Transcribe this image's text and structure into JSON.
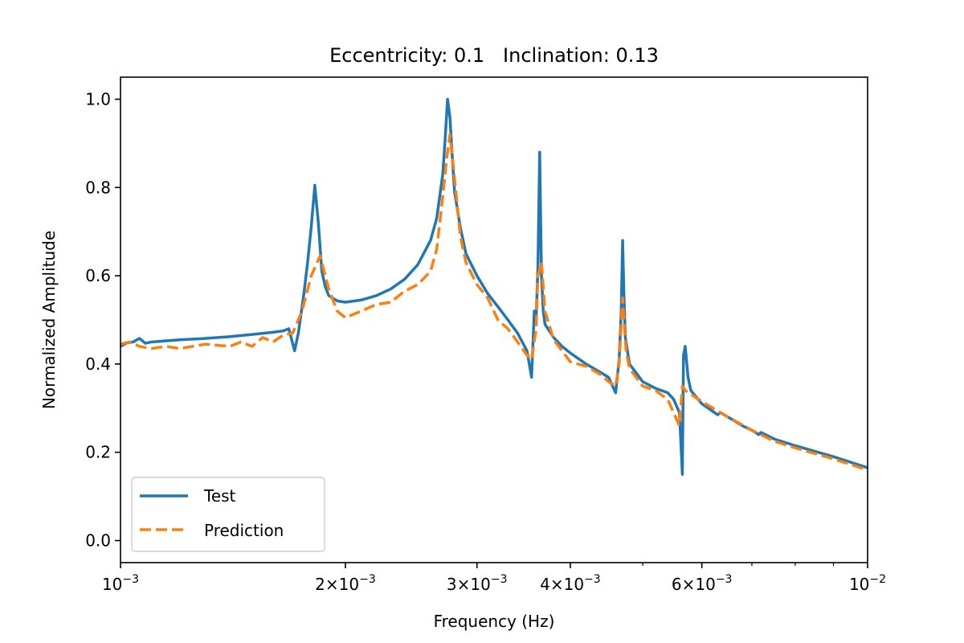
{
  "chart_data": {
    "type": "line",
    "title": "Eccentricity: 0.1   Inclination: 0.13",
    "xlabel": "Frequency (Hz)",
    "ylabel": "Normalized Amplitude",
    "xscale": "log",
    "xlim": [
      0.001,
      0.01
    ],
    "ylim": [
      -0.05,
      1.05
    ],
    "grid": false,
    "legend_position": "lower-left",
    "x_ticks": [
      {
        "value": 0.001,
        "label": "10",
        "sup": "−3",
        "coef": ""
      },
      {
        "value": 0.002,
        "label": "2×10",
        "sup": "−3",
        "coef": "2"
      },
      {
        "value": 0.003,
        "label": "3×10",
        "sup": "−3",
        "coef": "3"
      },
      {
        "value": 0.004,
        "label": "4×10",
        "sup": "−3",
        "coef": "4"
      },
      {
        "value": 0.006,
        "label": "6×10",
        "sup": "−3",
        "coef": "6"
      },
      {
        "value": 0.01,
        "label": "10",
        "sup": "−2",
        "coef": ""
      }
    ],
    "x_minor_ticks": [
      0.005,
      0.007,
      0.008,
      0.009
    ],
    "y_ticks": [
      {
        "value": 0.0,
        "label": "0.0"
      },
      {
        "value": 0.2,
        "label": "0.2"
      },
      {
        "value": 0.4,
        "label": "0.4"
      },
      {
        "value": 0.6,
        "label": "0.6"
      },
      {
        "value": 0.8,
        "label": "0.8"
      },
      {
        "value": 1.0,
        "label": "1.0"
      }
    ],
    "series": [
      {
        "name": "Test",
        "color": "#1f77b4",
        "dash": "solid",
        "points": [
          [
            0.001,
            0.44
          ],
          [
            0.00102,
            0.448
          ],
          [
            0.00104,
            0.45
          ],
          [
            0.00106,
            0.458
          ],
          [
            0.00108,
            0.447
          ],
          [
            0.0011,
            0.45
          ],
          [
            0.0012,
            0.455
          ],
          [
            0.0013,
            0.458
          ],
          [
            0.0014,
            0.462
          ],
          [
            0.0015,
            0.467
          ],
          [
            0.0016,
            0.472
          ],
          [
            0.00165,
            0.475
          ],
          [
            0.00168,
            0.48
          ],
          [
            0.00171,
            0.43
          ],
          [
            0.00173,
            0.47
          ],
          [
            0.00176,
            0.56
          ],
          [
            0.00178,
            0.63
          ],
          [
            0.0018,
            0.71
          ],
          [
            0.00182,
            0.805
          ],
          [
            0.00184,
            0.72
          ],
          [
            0.00186,
            0.61
          ],
          [
            0.00188,
            0.575
          ],
          [
            0.0019,
            0.555
          ],
          [
            0.00195,
            0.543
          ],
          [
            0.002,
            0.54
          ],
          [
            0.0021,
            0.545
          ],
          [
            0.0022,
            0.555
          ],
          [
            0.0023,
            0.57
          ],
          [
            0.0024,
            0.592
          ],
          [
            0.0025,
            0.625
          ],
          [
            0.0026,
            0.68
          ],
          [
            0.00265,
            0.73
          ],
          [
            0.0027,
            0.83
          ],
          [
            0.00272,
            0.91
          ],
          [
            0.00274,
            1.0
          ],
          [
            0.00276,
            0.96
          ],
          [
            0.00278,
            0.87
          ],
          [
            0.0028,
            0.79
          ],
          [
            0.00285,
            0.71
          ],
          [
            0.0029,
            0.65
          ],
          [
            0.003,
            0.6
          ],
          [
            0.0031,
            0.56
          ],
          [
            0.0032,
            0.53
          ],
          [
            0.0033,
            0.5
          ],
          [
            0.0034,
            0.47
          ],
          [
            0.0035,
            0.43
          ],
          [
            0.00355,
            0.37
          ],
          [
            0.00358,
            0.52
          ],
          [
            0.0036,
            0.5
          ],
          [
            0.00362,
            0.62
          ],
          [
            0.00364,
            0.88
          ],
          [
            0.00366,
            0.6
          ],
          [
            0.00368,
            0.52
          ],
          [
            0.0037,
            0.49
          ],
          [
            0.0038,
            0.46
          ],
          [
            0.0039,
            0.44
          ],
          [
            0.004,
            0.425
          ],
          [
            0.0042,
            0.4
          ],
          [
            0.0044,
            0.38
          ],
          [
            0.0045,
            0.37
          ],
          [
            0.0046,
            0.335
          ],
          [
            0.00465,
            0.41
          ],
          [
            0.00468,
            0.52
          ],
          [
            0.0047,
            0.68
          ],
          [
            0.00472,
            0.55
          ],
          [
            0.00474,
            0.46
          ],
          [
            0.0048,
            0.4
          ],
          [
            0.0049,
            0.38
          ],
          [
            0.005,
            0.36
          ],
          [
            0.0052,
            0.345
          ],
          [
            0.0053,
            0.34
          ],
          [
            0.0054,
            0.335
          ],
          [
            0.0055,
            0.32
          ],
          [
            0.0056,
            0.29
          ],
          [
            0.00565,
            0.15
          ],
          [
            0.00567,
            0.42
          ],
          [
            0.0057,
            0.44
          ],
          [
            0.00575,
            0.37
          ],
          [
            0.0058,
            0.34
          ],
          [
            0.006,
            0.31
          ],
          [
            0.0063,
            0.285
          ],
          [
            0.00635,
            0.29
          ],
          [
            0.0065,
            0.28
          ],
          [
            0.0068,
            0.26
          ],
          [
            0.007,
            0.25
          ],
          [
            0.00715,
            0.24
          ],
          [
            0.0072,
            0.245
          ],
          [
            0.0075,
            0.23
          ],
          [
            0.008,
            0.215
          ],
          [
            0.009,
            0.19
          ],
          [
            0.01,
            0.165
          ]
        ]
      },
      {
        "name": "Prediction",
        "color": "#ff7f0e",
        "dash": "dashed",
        "points": [
          [
            0.001,
            0.445
          ],
          [
            0.00103,
            0.45
          ],
          [
            0.00106,
            0.44
          ],
          [
            0.0011,
            0.435
          ],
          [
            0.00115,
            0.44
          ],
          [
            0.0012,
            0.435
          ],
          [
            0.0013,
            0.445
          ],
          [
            0.0014,
            0.44
          ],
          [
            0.00145,
            0.45
          ],
          [
            0.0015,
            0.44
          ],
          [
            0.00155,
            0.46
          ],
          [
            0.0016,
            0.45
          ],
          [
            0.00165,
            0.465
          ],
          [
            0.0017,
            0.47
          ],
          [
            0.00175,
            0.52
          ],
          [
            0.0018,
            0.6
          ],
          [
            0.00185,
            0.645
          ],
          [
            0.0019,
            0.57
          ],
          [
            0.00195,
            0.52
          ],
          [
            0.002,
            0.505
          ],
          [
            0.0021,
            0.52
          ],
          [
            0.0022,
            0.535
          ],
          [
            0.0023,
            0.54
          ],
          [
            0.0024,
            0.565
          ],
          [
            0.0025,
            0.58
          ],
          [
            0.0026,
            0.61
          ],
          [
            0.00265,
            0.66
          ],
          [
            0.0027,
            0.78
          ],
          [
            0.00273,
            0.86
          ],
          [
            0.00276,
            0.92
          ],
          [
            0.0028,
            0.82
          ],
          [
            0.00285,
            0.69
          ],
          [
            0.0029,
            0.63
          ],
          [
            0.003,
            0.58
          ],
          [
            0.0031,
            0.55
          ],
          [
            0.0032,
            0.5
          ],
          [
            0.0033,
            0.48
          ],
          [
            0.0034,
            0.45
          ],
          [
            0.0035,
            0.42
          ],
          [
            0.00355,
            0.41
          ],
          [
            0.0036,
            0.48
          ],
          [
            0.00362,
            0.6
          ],
          [
            0.00366,
            0.63
          ],
          [
            0.0037,
            0.52
          ],
          [
            0.0038,
            0.455
          ],
          [
            0.0039,
            0.43
          ],
          [
            0.004,
            0.405
          ],
          [
            0.0042,
            0.395
          ],
          [
            0.0044,
            0.375
          ],
          [
            0.0045,
            0.36
          ],
          [
            0.0046,
            0.35
          ],
          [
            0.00465,
            0.4
          ],
          [
            0.0047,
            0.55
          ],
          [
            0.00475,
            0.43
          ],
          [
            0.0048,
            0.39
          ],
          [
            0.005,
            0.35
          ],
          [
            0.0052,
            0.34
          ],
          [
            0.0054,
            0.32
          ],
          [
            0.0056,
            0.26
          ],
          [
            0.00565,
            0.35
          ],
          [
            0.0057,
            0.34
          ],
          [
            0.006,
            0.315
          ],
          [
            0.0065,
            0.28
          ],
          [
            0.007,
            0.25
          ],
          [
            0.0075,
            0.225
          ],
          [
            0.008,
            0.21
          ],
          [
            0.009,
            0.185
          ],
          [
            0.01,
            0.16
          ]
        ]
      }
    ]
  }
}
